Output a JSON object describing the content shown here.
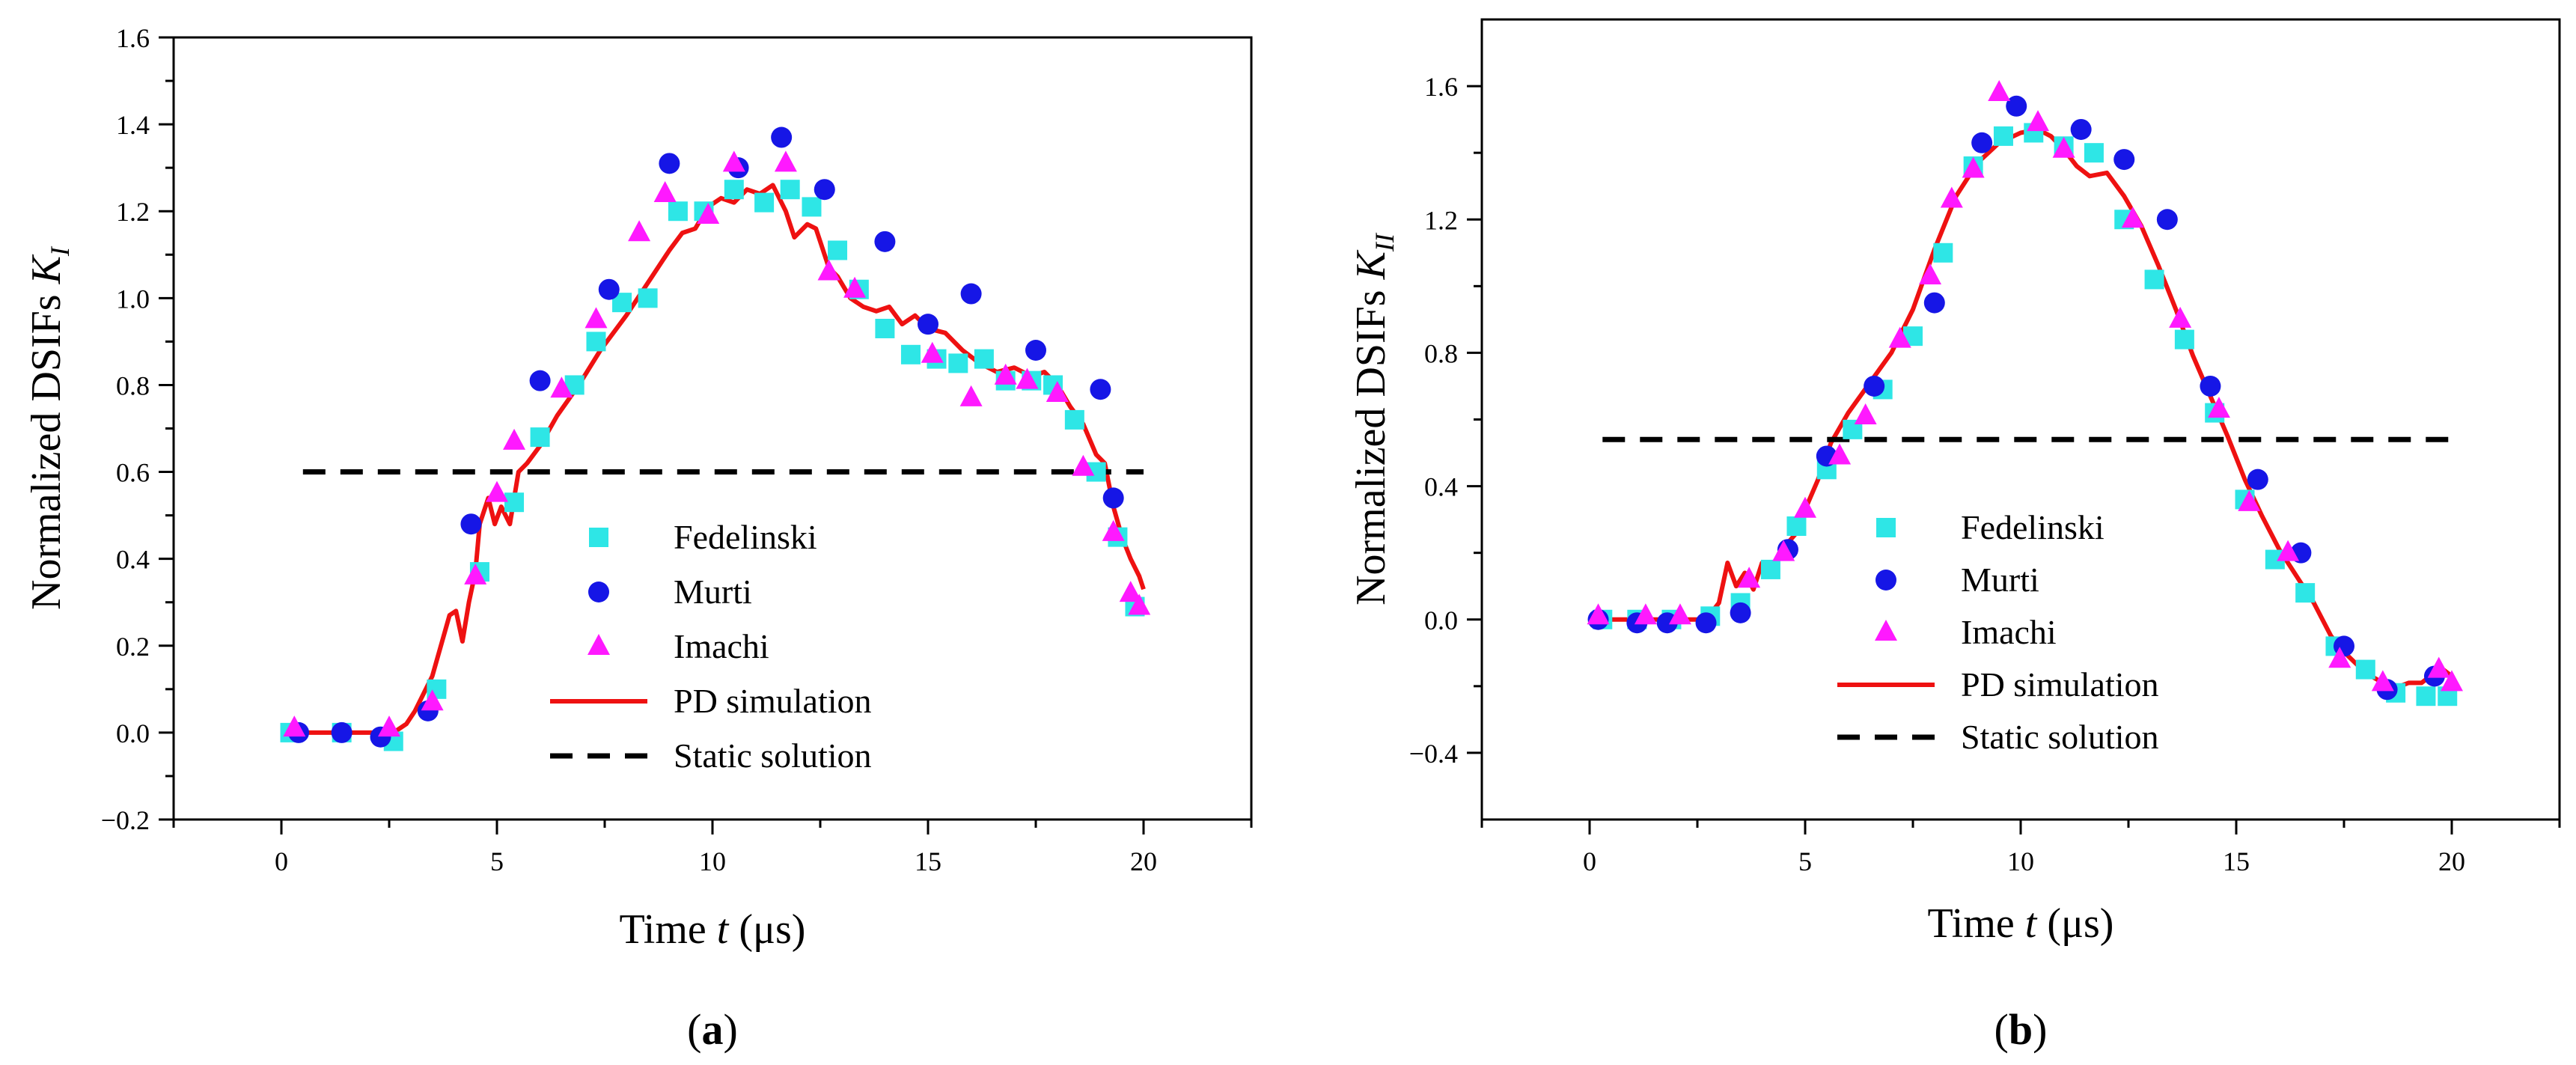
{
  "chart_data": [
    {
      "type": "line",
      "panel_label": "(a)",
      "xlabel_parts": [
        "Time ",
        "t",
        " (μs)"
      ],
      "ylabel_parts": [
        "Normalized DSIFs ",
        "K",
        "I"
      ],
      "xlim": [
        -2.5,
        22.5
      ],
      "ylim": [
        -0.2,
        1.6
      ],
      "xticks": [
        0,
        5,
        10,
        15,
        20
      ],
      "yticks": [
        -0.2,
        0.0,
        0.2,
        0.4,
        0.6,
        0.8,
        1.0,
        1.2,
        1.4,
        1.6
      ],
      "ytick_labels": [
        "−0.2",
        "0.0",
        "0.2",
        "0.4",
        "0.6",
        "0.8",
        "1.0",
        "1.2",
        "1.4",
        "1.6"
      ],
      "legend_position": "center-right",
      "grid": false,
      "series": [
        {
          "name": "Fedelinski",
          "kind": "marker",
          "marker": "square",
          "color": "#2ee6e6",
          "x": [
            0.2,
            1.4,
            2.6,
            3.6,
            4.6,
            5.4,
            6.0,
            6.8,
            7.3,
            7.9,
            8.5,
            9.2,
            9.8,
            10.5,
            11.2,
            11.8,
            12.3,
            12.9,
            13.4,
            14.0,
            14.6,
            15.2,
            15.7,
            16.3,
            16.8,
            17.4,
            17.9,
            18.4,
            18.9,
            19.4,
            19.8
          ],
          "y": [
            0.0,
            0.0,
            -0.02,
            0.1,
            0.37,
            0.53,
            0.68,
            0.8,
            0.9,
            0.99,
            1.0,
            1.2,
            1.2,
            1.25,
            1.22,
            1.25,
            1.21,
            1.11,
            1.02,
            0.93,
            0.87,
            0.86,
            0.85,
            0.86,
            0.81,
            0.81,
            0.8,
            0.72,
            0.6,
            0.45,
            0.29
          ]
        },
        {
          "name": "Murti",
          "kind": "marker",
          "marker": "circle",
          "color": "#1616e6",
          "x": [
            0.4,
            1.4,
            2.3,
            3.4,
            4.4,
            6.0,
            7.6,
            9.0,
            10.6,
            11.6,
            12.6,
            14.0,
            15.0,
            16.0,
            17.5,
            19.0,
            19.3
          ],
          "y": [
            0.0,
            0.0,
            -0.01,
            0.05,
            0.48,
            0.81,
            1.02,
            1.31,
            1.3,
            1.37,
            1.25,
            1.13,
            0.94,
            1.01,
            0.88,
            0.79,
            0.54
          ]
        },
        {
          "name": "Imachi",
          "kind": "marker",
          "marker": "triangle",
          "color": "#ff19ff",
          "x": [
            0.3,
            2.5,
            3.5,
            4.5,
            5.0,
            5.4,
            6.5,
            7.3,
            8.3,
            8.9,
            9.9,
            10.5,
            11.7,
            12.7,
            13.3,
            15.1,
            16.0,
            16.8,
            17.3,
            18.0,
            18.6,
            19.3,
            19.7,
            19.9
          ],
          "y": [
            0.01,
            0.01,
            0.07,
            0.36,
            0.55,
            0.67,
            0.79,
            0.95,
            1.15,
            1.24,
            1.19,
            1.31,
            1.31,
            1.06,
            1.02,
            0.87,
            0.77,
            0.82,
            0.81,
            0.78,
            0.61,
            0.46,
            0.32,
            0.29
          ]
        },
        {
          "name": "PD simulation",
          "kind": "line",
          "color": "#ee1111",
          "x": [
            0.0,
            2.6,
            2.9,
            3.1,
            3.3,
            3.5,
            3.7,
            3.9,
            4.05,
            4.2,
            4.35,
            4.5,
            4.6,
            4.8,
            4.95,
            5.1,
            5.3,
            5.5,
            5.7,
            6.0,
            6.4,
            6.9,
            7.4,
            8.0,
            8.6,
            9.0,
            9.3,
            9.6,
            9.9,
            10.2,
            10.5,
            10.8,
            11.1,
            11.4,
            11.7,
            11.9,
            12.2,
            12.4,
            12.7,
            12.9,
            13.2,
            13.5,
            13.8,
            14.1,
            14.4,
            14.7,
            15.0,
            15.4,
            15.8,
            16.2,
            16.6,
            17.0,
            17.4,
            17.7,
            18.0,
            18.3,
            18.6,
            18.9,
            19.1,
            19.3,
            19.5,
            19.7,
            19.9,
            20.0
          ],
          "y": [
            0.0,
            0.0,
            0.02,
            0.05,
            0.09,
            0.13,
            0.2,
            0.27,
            0.28,
            0.21,
            0.3,
            0.37,
            0.48,
            0.54,
            0.48,
            0.52,
            0.48,
            0.6,
            0.62,
            0.66,
            0.73,
            0.8,
            0.88,
            0.96,
            1.05,
            1.11,
            1.15,
            1.16,
            1.21,
            1.23,
            1.22,
            1.25,
            1.24,
            1.26,
            1.2,
            1.14,
            1.17,
            1.16,
            1.07,
            1.05,
            1.0,
            0.98,
            0.97,
            0.98,
            0.94,
            0.96,
            0.93,
            0.92,
            0.88,
            0.85,
            0.83,
            0.84,
            0.82,
            0.83,
            0.8,
            0.75,
            0.71,
            0.64,
            0.62,
            0.52,
            0.45,
            0.4,
            0.36,
            0.33
          ]
        },
        {
          "name": "Static solution",
          "kind": "dashed-line",
          "color": "#000000",
          "x": [
            0.5,
            20.0
          ],
          "y": [
            0.6,
            0.6
          ]
        }
      ]
    },
    {
      "type": "line",
      "panel_label": "(b)",
      "xlabel_parts": [
        "Time ",
        "t",
        " (μs)"
      ],
      "ylabel_parts": [
        "Normalized DSIFs ",
        "K",
        "II"
      ],
      "xlim": [
        -2.5,
        22.5
      ],
      "ylim": [
        -0.6,
        1.8
      ],
      "xticks": [
        0,
        5,
        10,
        15,
        20
      ],
      "yticks": [
        -0.4,
        0.0,
        0.4,
        0.8,
        1.2,
        1.6
      ],
      "ytick_labels": [
        "−0.4",
        "0.0",
        "0.4",
        "0.8",
        "1.2",
        "1.6"
      ],
      "legend_position": "center-right",
      "grid": false,
      "series": [
        {
          "name": "Fedelinski",
          "kind": "marker",
          "marker": "square",
          "color": "#2ee6e6",
          "x": [
            0.3,
            1.1,
            1.9,
            2.8,
            3.5,
            4.2,
            4.8,
            5.5,
            6.1,
            6.8,
            7.5,
            8.2,
            8.9,
            9.6,
            10.3,
            11.0,
            11.7,
            12.4,
            13.1,
            13.8,
            14.5,
            15.2,
            15.9,
            16.6,
            17.3,
            18.0,
            18.7,
            19.4,
            19.9
          ],
          "y": [
            0.0,
            0.0,
            0.0,
            0.01,
            0.05,
            0.15,
            0.28,
            0.45,
            0.57,
            0.69,
            0.85,
            1.1,
            1.36,
            1.45,
            1.46,
            1.42,
            1.4,
            1.2,
            1.02,
            0.84,
            0.62,
            0.36,
            0.18,
            0.08,
            -0.08,
            -0.15,
            -0.22,
            -0.23,
            -0.23
          ]
        },
        {
          "name": "Murti",
          "kind": "marker",
          "marker": "circle",
          "color": "#1616e6",
          "x": [
            0.2,
            1.1,
            1.8,
            2.7,
            3.5,
            4.6,
            5.5,
            6.6,
            8.0,
            9.1,
            9.9,
            11.4,
            12.4,
            13.4,
            14.4,
            15.5,
            16.5,
            17.5,
            18.5,
            19.6
          ],
          "y": [
            0.0,
            -0.01,
            -0.01,
            -0.01,
            0.02,
            0.21,
            0.49,
            0.7,
            0.95,
            1.43,
            1.54,
            1.47,
            1.38,
            1.2,
            0.7,
            0.42,
            0.2,
            -0.08,
            -0.21,
            -0.17
          ]
        },
        {
          "name": "Imachi",
          "kind": "marker",
          "marker": "triangle",
          "color": "#ff19ff",
          "x": [
            0.2,
            1.3,
            2.1,
            3.7,
            4.5,
            5.0,
            5.8,
            6.4,
            7.2,
            7.9,
            8.4,
            8.9,
            9.5,
            10.4,
            11.0,
            12.6,
            13.7,
            14.6,
            15.3,
            16.2,
            17.4,
            18.4,
            19.7,
            20.0
          ],
          "y": [
            0.01,
            0.01,
            0.01,
            0.12,
            0.2,
            0.33,
            0.49,
            0.61,
            0.84,
            1.03,
            1.26,
            1.35,
            1.58,
            1.49,
            1.41,
            1.2,
            0.9,
            0.63,
            0.35,
            0.2,
            -0.12,
            -0.19,
            -0.15,
            -0.19
          ]
        },
        {
          "name": "PD simulation",
          "kind": "line",
          "color": "#ee1111",
          "x": [
            0.0,
            2.7,
            3.0,
            3.2,
            3.4,
            3.6,
            3.8,
            4.0,
            4.2,
            4.4,
            4.6,
            4.8,
            5.0,
            5.3,
            5.6,
            6.0,
            6.5,
            7.0,
            7.5,
            8.0,
            8.5,
            9.0,
            9.5,
            10.0,
            10.4,
            10.7,
            11.0,
            11.3,
            11.6,
            12.0,
            12.4,
            12.8,
            13.2,
            13.6,
            14.0,
            14.4,
            14.8,
            15.2,
            15.6,
            16.0,
            16.4,
            16.8,
            17.2,
            17.6,
            18.0,
            18.4,
            18.8,
            19.0,
            19.3,
            19.6,
            19.8,
            20.0
          ],
          "y": [
            0.0,
            0.0,
            0.05,
            0.17,
            0.1,
            0.14,
            0.09,
            0.17,
            0.14,
            0.2,
            0.23,
            0.26,
            0.33,
            0.42,
            0.53,
            0.62,
            0.71,
            0.8,
            0.93,
            1.11,
            1.27,
            1.37,
            1.43,
            1.46,
            1.47,
            1.45,
            1.41,
            1.36,
            1.33,
            1.34,
            1.27,
            1.18,
            1.06,
            0.93,
            0.79,
            0.67,
            0.55,
            0.42,
            0.31,
            0.21,
            0.13,
            0.05,
            -0.05,
            -0.11,
            -0.16,
            -0.19,
            -0.2,
            -0.19,
            -0.19,
            -0.16,
            -0.15,
            -0.17
          ]
        },
        {
          "name": "Static solution",
          "kind": "dashed-line",
          "color": "#000000",
          "x": [
            0.3,
            20.0
          ],
          "y": [
            0.54,
            0.54
          ]
        }
      ]
    }
  ]
}
